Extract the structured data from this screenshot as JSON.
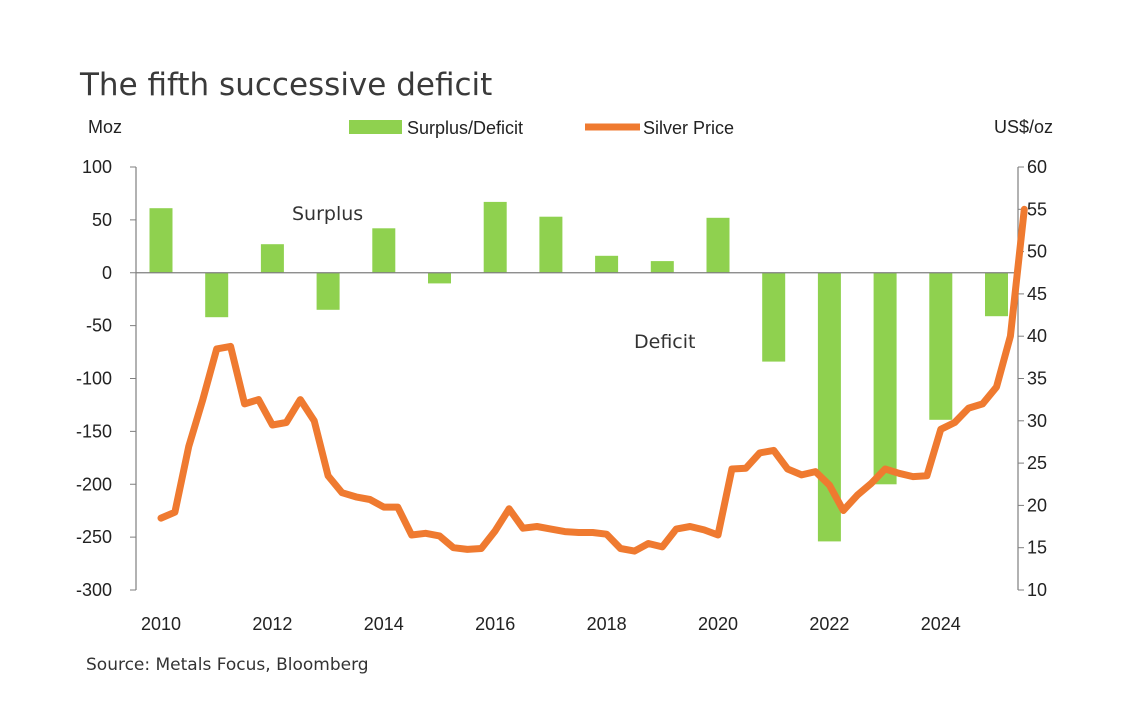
{
  "chart_data": {
    "type": "bar+line",
    "title": "The fifth successive deficit",
    "source": "Source: Metals Focus, Bloomberg",
    "left_axis": {
      "unit": "Moz",
      "ylim": [
        -300,
        100
      ],
      "ticks": [
        "100",
        "50",
        "0",
        "-50",
        "-100",
        "-150",
        "-200",
        "-250",
        "-300"
      ]
    },
    "right_axis": {
      "unit": "US$/oz",
      "ylim": [
        10,
        60
      ],
      "ticks": [
        "60",
        "55",
        "50",
        "45",
        "40",
        "35",
        "30",
        "25",
        "20",
        "15",
        "10"
      ]
    },
    "x_ticks": [
      "2010",
      "2012",
      "2014",
      "2016",
      "2018",
      "2020",
      "2022",
      "2024"
    ],
    "legend": {
      "placement": "top-center",
      "bar_label": "Surplus/Deficit",
      "line_label": "Silver Price"
    },
    "annotations": {
      "surplus": "Surplus",
      "deficit": "Deficit"
    },
    "colors": {
      "bar": "#8fd14f",
      "line": "#ef7a30",
      "axis": "#7f7f7f"
    },
    "bar_series": {
      "name": "Surplus/Deficit",
      "years": [
        2010,
        2011,
        2012,
        2013,
        2014,
        2015,
        2016,
        2017,
        2018,
        2019,
        2020,
        2021,
        2022,
        2023,
        2024,
        2025
      ],
      "values": [
        61,
        -42,
        27,
        -35,
        42,
        -10,
        67,
        53,
        16,
        11,
        52,
        -84,
        -254,
        -200,
        -139,
        -41
      ]
    },
    "line_series": {
      "name": "Silver Price",
      "x": [
        2010.0,
        2010.25,
        2010.5,
        2010.75,
        2011.0,
        2011.25,
        2011.5,
        2011.75,
        2012.0,
        2012.25,
        2012.5,
        2012.75,
        2013.0,
        2013.25,
        2013.5,
        2013.75,
        2014.0,
        2014.25,
        2014.5,
        2014.75,
        2015.0,
        2015.25,
        2015.5,
        2015.75,
        2016.0,
        2016.25,
        2016.5,
        2016.75,
        2017.0,
        2017.25,
        2017.5,
        2017.75,
        2018.0,
        2018.25,
        2018.5,
        2018.75,
        2019.0,
        2019.25,
        2019.5,
        2019.75,
        2020.0,
        2020.25,
        2020.5,
        2020.75,
        2021.0,
        2021.25,
        2021.5,
        2021.75,
        2022.0,
        2022.25,
        2022.5,
        2022.75,
        2023.0,
        2023.25,
        2023.5,
        2023.75,
        2024.0,
        2024.25,
        2024.5,
        2024.75,
        2025.0,
        2025.25,
        2025.5
      ],
      "y": [
        18.5,
        19.2,
        27.0,
        32.5,
        38.5,
        38.8,
        32.0,
        32.5,
        29.5,
        29.8,
        32.5,
        30.0,
        23.5,
        21.5,
        21.0,
        20.7,
        19.8,
        19.8,
        16.5,
        16.7,
        16.4,
        15.0,
        14.8,
        14.9,
        17.0,
        19.6,
        17.3,
        17.5,
        17.2,
        16.9,
        16.8,
        16.8,
        16.6,
        14.9,
        14.6,
        15.5,
        15.1,
        17.2,
        17.5,
        17.1,
        16.5,
        24.3,
        24.4,
        26.2,
        26.5,
        24.3,
        23.6,
        24.0,
        22.4,
        19.4,
        21.2,
        22.6,
        24.3,
        23.8,
        23.4,
        23.5,
        29.0,
        29.8,
        31.5,
        32.0,
        34.0,
        40.0,
        55.0
      ]
    }
  }
}
